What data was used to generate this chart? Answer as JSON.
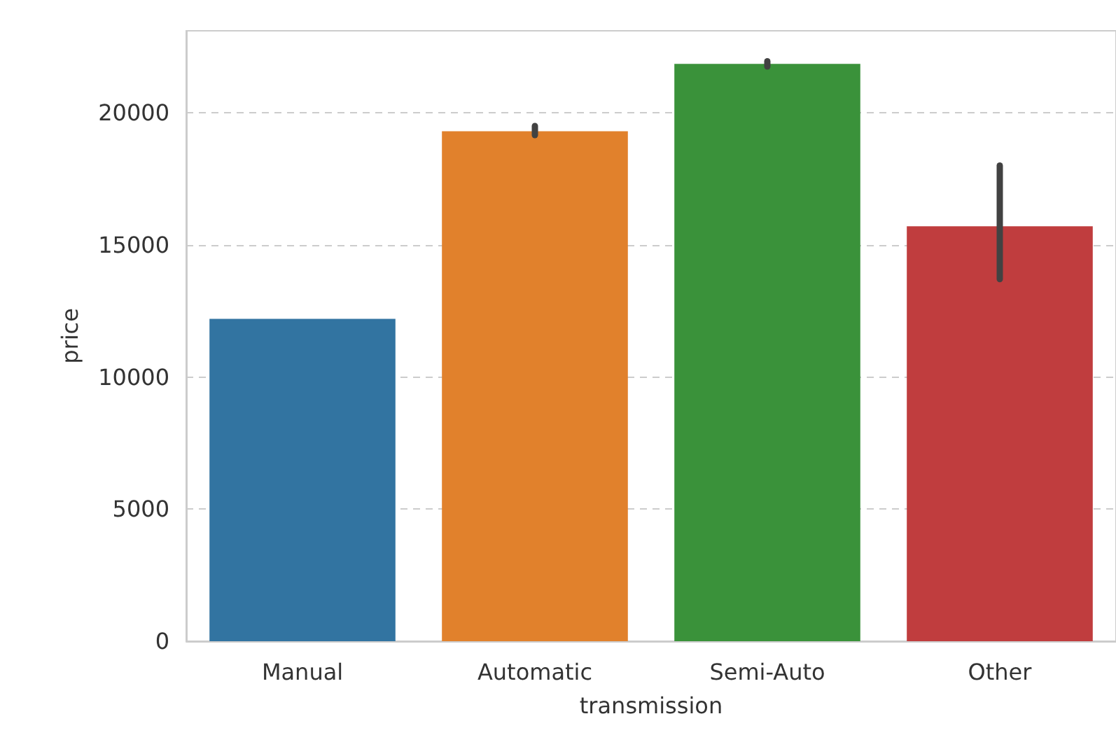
{
  "chart_data": {
    "type": "bar",
    "xlabel": "transmission",
    "ylabel": "price",
    "categories": [
      "Manual",
      "Automatic",
      "Semi-Auto",
      "Other"
    ],
    "values": [
      12200,
      19300,
      21850,
      15700
    ],
    "colors": [
      "#3274a1",
      "#e1812c",
      "#3a923a",
      "#c03d3e"
    ],
    "errors": [
      null,
      [
        19150,
        19500
      ],
      [
        21750,
        21950
      ],
      [
        13700,
        18000
      ]
    ],
    "ylim": [
      0,
      23100
    ],
    "yticks": [
      0,
      5000,
      10000,
      15000,
      20000
    ],
    "grid": "y"
  }
}
